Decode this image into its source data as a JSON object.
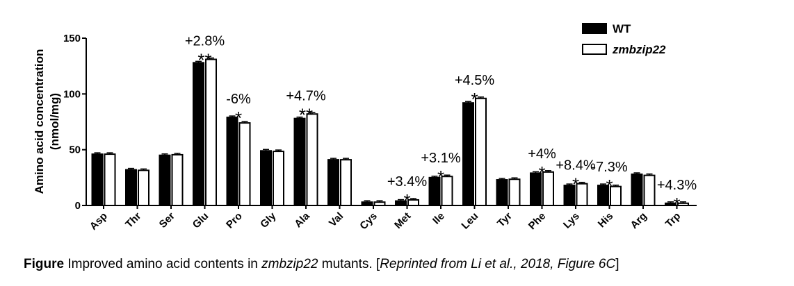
{
  "chart_data": {
    "type": "bar",
    "title": "",
    "xlabel": "",
    "ylabel_line1": "Amino acid concentration",
    "ylabel_line2": "(nmol/mg)",
    "ylim": [
      0,
      150
    ],
    "yticks": [
      0,
      50,
      100,
      150
    ],
    "categories": [
      "Asp",
      "Thr",
      "Ser",
      "Glu",
      "Pro",
      "Gly",
      "Ala",
      "Val",
      "Cys",
      "Met",
      "Ile",
      "Leu",
      "Tyr",
      "Phe",
      "Lys",
      "His",
      "Arg",
      "Trp"
    ],
    "series": [
      {
        "name": "WT",
        "fill": "#000000",
        "values": [
          46,
          32,
          45,
          128,
          79,
          49,
          78,
          41,
          3,
          4,
          25,
          92,
          23,
          29,
          18,
          18,
          28,
          2
        ]
      },
      {
        "name": "zmbzip22",
        "fill": "#ffffff",
        "italic": true,
        "values": [
          46,
          31.5,
          45.5,
          131,
          74,
          48.5,
          82,
          41,
          3,
          5,
          26,
          96,
          23.5,
          30,
          19.5,
          17,
          27,
          2
        ]
      }
    ],
    "annotations": [
      {
        "category": "Glu",
        "pct": "+2.8%",
        "sig": "**"
      },
      {
        "category": "Pro",
        "pct": "-6%",
        "sig": "*"
      },
      {
        "category": "Ala",
        "pct": "+4.7%",
        "sig": "**"
      },
      {
        "category": "Met",
        "pct": "+3.4%",
        "sig": "*"
      },
      {
        "category": "Ile",
        "pct": "+3.1%",
        "sig": "*"
      },
      {
        "category": "Leu",
        "pct": "+4.5%",
        "sig": "*"
      },
      {
        "category": "Phe",
        "pct": "+4%",
        "sig": "*"
      },
      {
        "category": "Lys",
        "pct": "+8.4%",
        "sig": "*"
      },
      {
        "category": "His",
        "pct": "-7.3%",
        "sig": "*"
      },
      {
        "category": "Trp",
        "pct": "+4.3%",
        "sig": "*"
      }
    ],
    "legend_position": "top-right",
    "error_bars": true
  },
  "caption": {
    "label": "Figure",
    "text_before": " Improved amino acid contents in ",
    "gene": "zmbzip22",
    "text_mid": " mutants. [",
    "citation": "Reprinted from Li et al., 2018, Figure 6C",
    "text_end": "]"
  }
}
